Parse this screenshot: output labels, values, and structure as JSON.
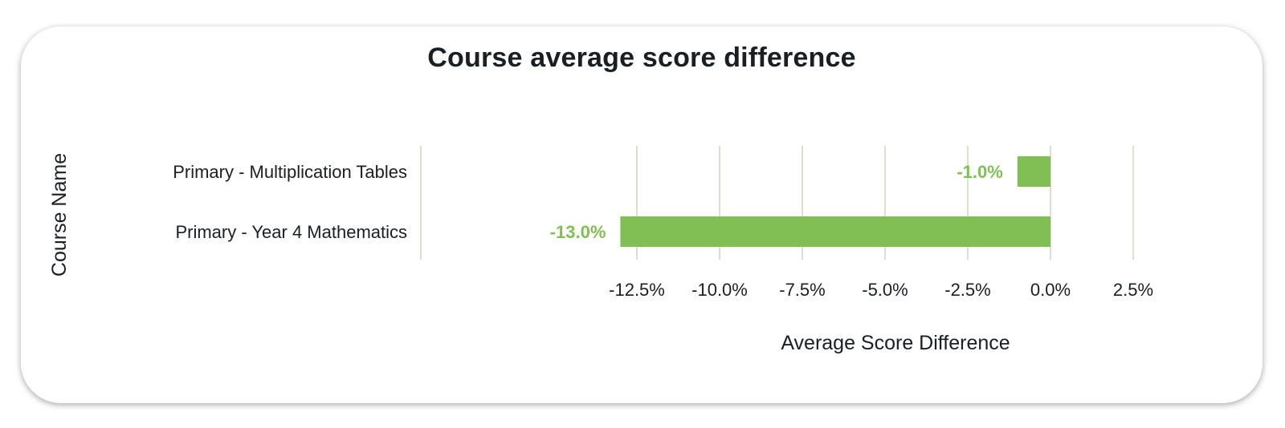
{
  "chart_data": {
    "type": "bar",
    "orientation": "horizontal",
    "title": "Course average score difference",
    "xlabel": "Average Score Difference",
    "ylabel": "Course Name",
    "categories": [
      "Primary - Multiplication Tables",
      "Primary - Year 4 Mathematics"
    ],
    "values": [
      -1.0,
      -13.0
    ],
    "data_labels": [
      "-1.0%",
      "-13.0%"
    ],
    "x_ticks": [
      -12.5,
      -10.0,
      -7.5,
      -5.0,
      -2.5,
      0.0,
      2.5
    ],
    "x_tick_labels": [
      "-12.5%",
      "-10.0%",
      "-7.5%",
      "-5.0%",
      "-2.5%",
      "0.0%",
      "2.5%"
    ],
    "xlim": [
      -19,
      2.5
    ],
    "grid": true,
    "legend": "none",
    "colors": {
      "bar": "#80bf53",
      "data_label": "#80bf53",
      "grid": "#ddddd0"
    }
  }
}
